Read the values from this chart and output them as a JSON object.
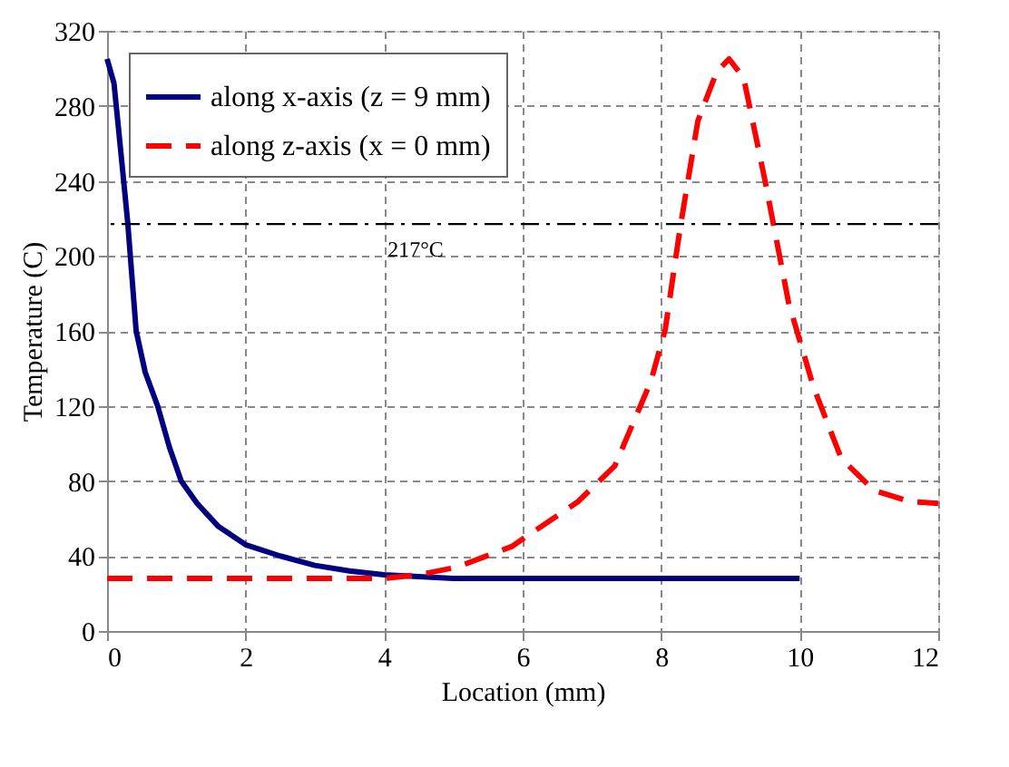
{
  "chart_data": {
    "type": "line",
    "xlabel": "Location (mm)",
    "ylabel": "Temperature (C)",
    "xlim": [
      0,
      12
    ],
    "xticks": [
      0,
      2,
      4,
      6,
      8,
      10,
      12
    ],
    "ylim": [
      0,
      320
    ],
    "yticks": [
      0,
      40,
      80,
      120,
      160,
      200,
      240,
      280,
      320
    ],
    "grid": true,
    "legend": "top left",
    "series": [
      {
        "name": "along x-axis (z = 9 mm)",
        "color": "#000080",
        "line_style": "solid",
        "x": [
          0,
          0.1,
          0.2,
          0.3,
          0.42,
          0.55,
          0.73,
          0.9,
          1.07,
          1.3,
          1.6,
          2.0,
          2.5,
          3.0,
          3.5,
          4.0,
          4.5,
          5.0,
          6.0,
          8.0,
          10.0
        ],
        "values": [
          305,
          292,
          255,
          217,
          160,
          138,
          120,
          98,
          80,
          68,
          56,
          46,
          40,
          35,
          32,
          30,
          29,
          28,
          28,
          28,
          28
        ]
      },
      {
        "name": "along z-axis (x = 0 mm)",
        "color": "#ff0000",
        "line_style": "dashed",
        "x": [
          0,
          1,
          2,
          3,
          4,
          4.5,
          5.05,
          5.84,
          6.8,
          7.33,
          7.85,
          8.06,
          8.27,
          8.53,
          8.8,
          8.98,
          9.19,
          9.5,
          9.84,
          10.2,
          10.6,
          11.07,
          11.6,
          12
        ],
        "values": [
          28,
          28,
          28,
          28,
          28,
          30,
          34,
          45,
          69,
          88,
          133,
          161,
          214,
          272,
          298,
          305,
          295,
          240,
          175,
          130,
          92,
          75,
          69,
          68
        ]
      }
    ],
    "ref_lines": [
      {
        "axis": "y",
        "value": 217,
        "label": "217°C",
        "color": "#000000",
        "line_style": "dashdot"
      }
    ]
  }
}
